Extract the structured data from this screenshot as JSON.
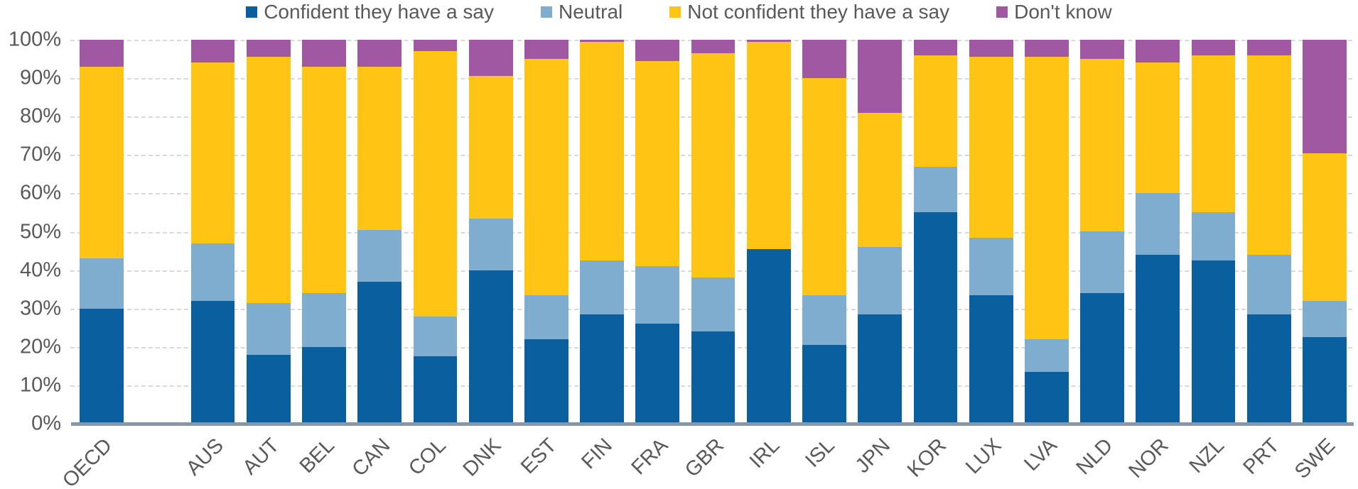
{
  "chart_data": {
    "type": "bar",
    "stacked": true,
    "orientation": "vertical",
    "title": "",
    "xlabel": "",
    "ylabel": "",
    "ylim": [
      0,
      100
    ],
    "yticks": [
      0,
      10,
      20,
      30,
      40,
      50,
      60,
      70,
      80,
      90,
      100
    ],
    "ytick_suffix": "%",
    "grid": "horizontal-dashed",
    "legend_position": "top",
    "gap_after_index": 0,
    "categories": [
      "OECD",
      "AUS",
      "AUT",
      "BEL",
      "CAN",
      "COL",
      "DNK",
      "EST",
      "FIN",
      "FRA",
      "GBR",
      "IRL",
      "ISL",
      "JPN",
      "KOR",
      "LUX",
      "LVA",
      "NLD",
      "NOR",
      "NZL",
      "PRT",
      "SWE"
    ],
    "series": [
      {
        "name": "Confident they have a say",
        "color": "#0a5f9f",
        "values": [
          30,
          32,
          18,
          20,
          37,
          17.5,
          40,
          22,
          28.5,
          26,
          24,
          45.5,
          20.5,
          28.5,
          55,
          33.5,
          13.5,
          34,
          44,
          42.5,
          28.5,
          22.5
        ]
      },
      {
        "name": "Neutral",
        "color": "#7fadcf",
        "values": [
          13,
          15,
          13.5,
          14,
          13.5,
          10.5,
          13.5,
          11.5,
          14,
          15,
          14,
          0,
          13,
          17.5,
          12,
          15,
          8.5,
          16,
          16,
          12.5,
          15.5,
          9.5
        ]
      },
      {
        "name": "Not confident they have a say",
        "color": "#ffc414",
        "values": [
          50,
          47,
          64,
          59,
          42.5,
          69,
          37,
          61.5,
          57,
          53.5,
          58.5,
          54,
          56.5,
          35,
          29,
          47,
          73.5,
          45,
          34,
          41,
          52,
          38.5
        ]
      },
      {
        "name": "Don't know",
        "color": "#a158a3",
        "values": [
          7,
          6,
          4.5,
          7,
          7,
          3,
          9.5,
          5,
          0.5,
          5.5,
          3.5,
          0.5,
          10,
          19,
          4,
          4.5,
          4.5,
          5,
          6,
          4,
          4,
          29.5
        ]
      }
    ],
    "colors": {
      "axis_line": "#8497ac",
      "gridline": "#d9d9d9",
      "tick_text": "#595959"
    }
  }
}
